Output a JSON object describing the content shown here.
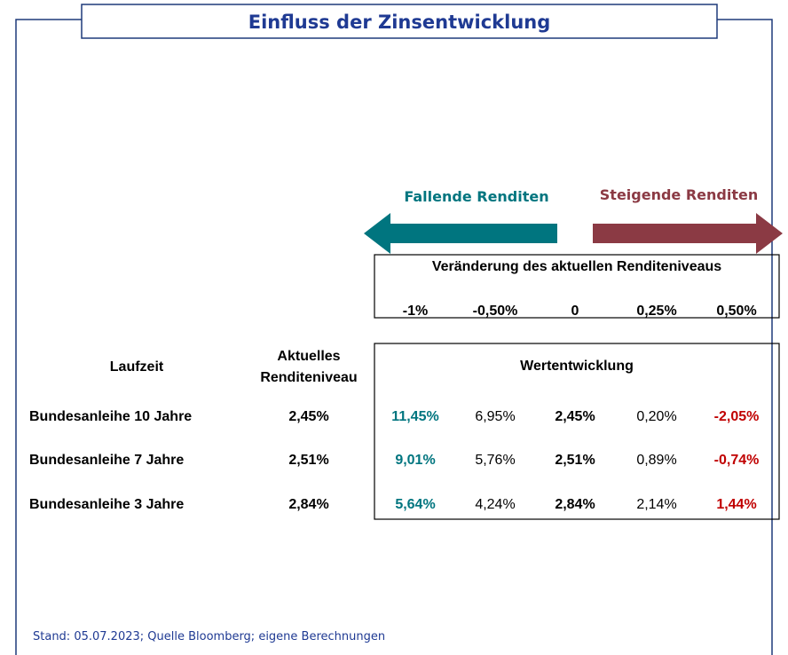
{
  "title": "Einfluss der Zinsentwicklung",
  "arrows": {
    "falling": "Fallende Renditen",
    "rising": "Steigende Renditen"
  },
  "change_header": "Veränderung des aktuellen Renditeniveaus",
  "changes": [
    "-1%",
    "-0,50%",
    "0",
    "0,25%",
    "0,50%"
  ],
  "table": {
    "headers": [
      "Laufzeit",
      "Aktuelles Renditeniveau",
      "Wertentwicklung"
    ],
    "rows": [
      [
        "Bundesanleihe 10 Jahre",
        "2,45%",
        "11,45%",
        "6,95%",
        "2,45%",
        "0,20%",
        "-2,05%"
      ],
      [
        "Bundesanleihe 7 Jahre",
        "2,51%",
        "9,01%",
        "5,76%",
        "2,51%",
        "0,89%",
        "-0,74%"
      ],
      [
        "Bundesanleihe 3 Jahre",
        "2,84%",
        "5,64%",
        "4,24%",
        "2,84%",
        "2,14%",
        "1,44%"
      ]
    ]
  },
  "footer": "Stand: 05.07.2023; Quelle Bloomberg; eigene Berechnungen"
}
